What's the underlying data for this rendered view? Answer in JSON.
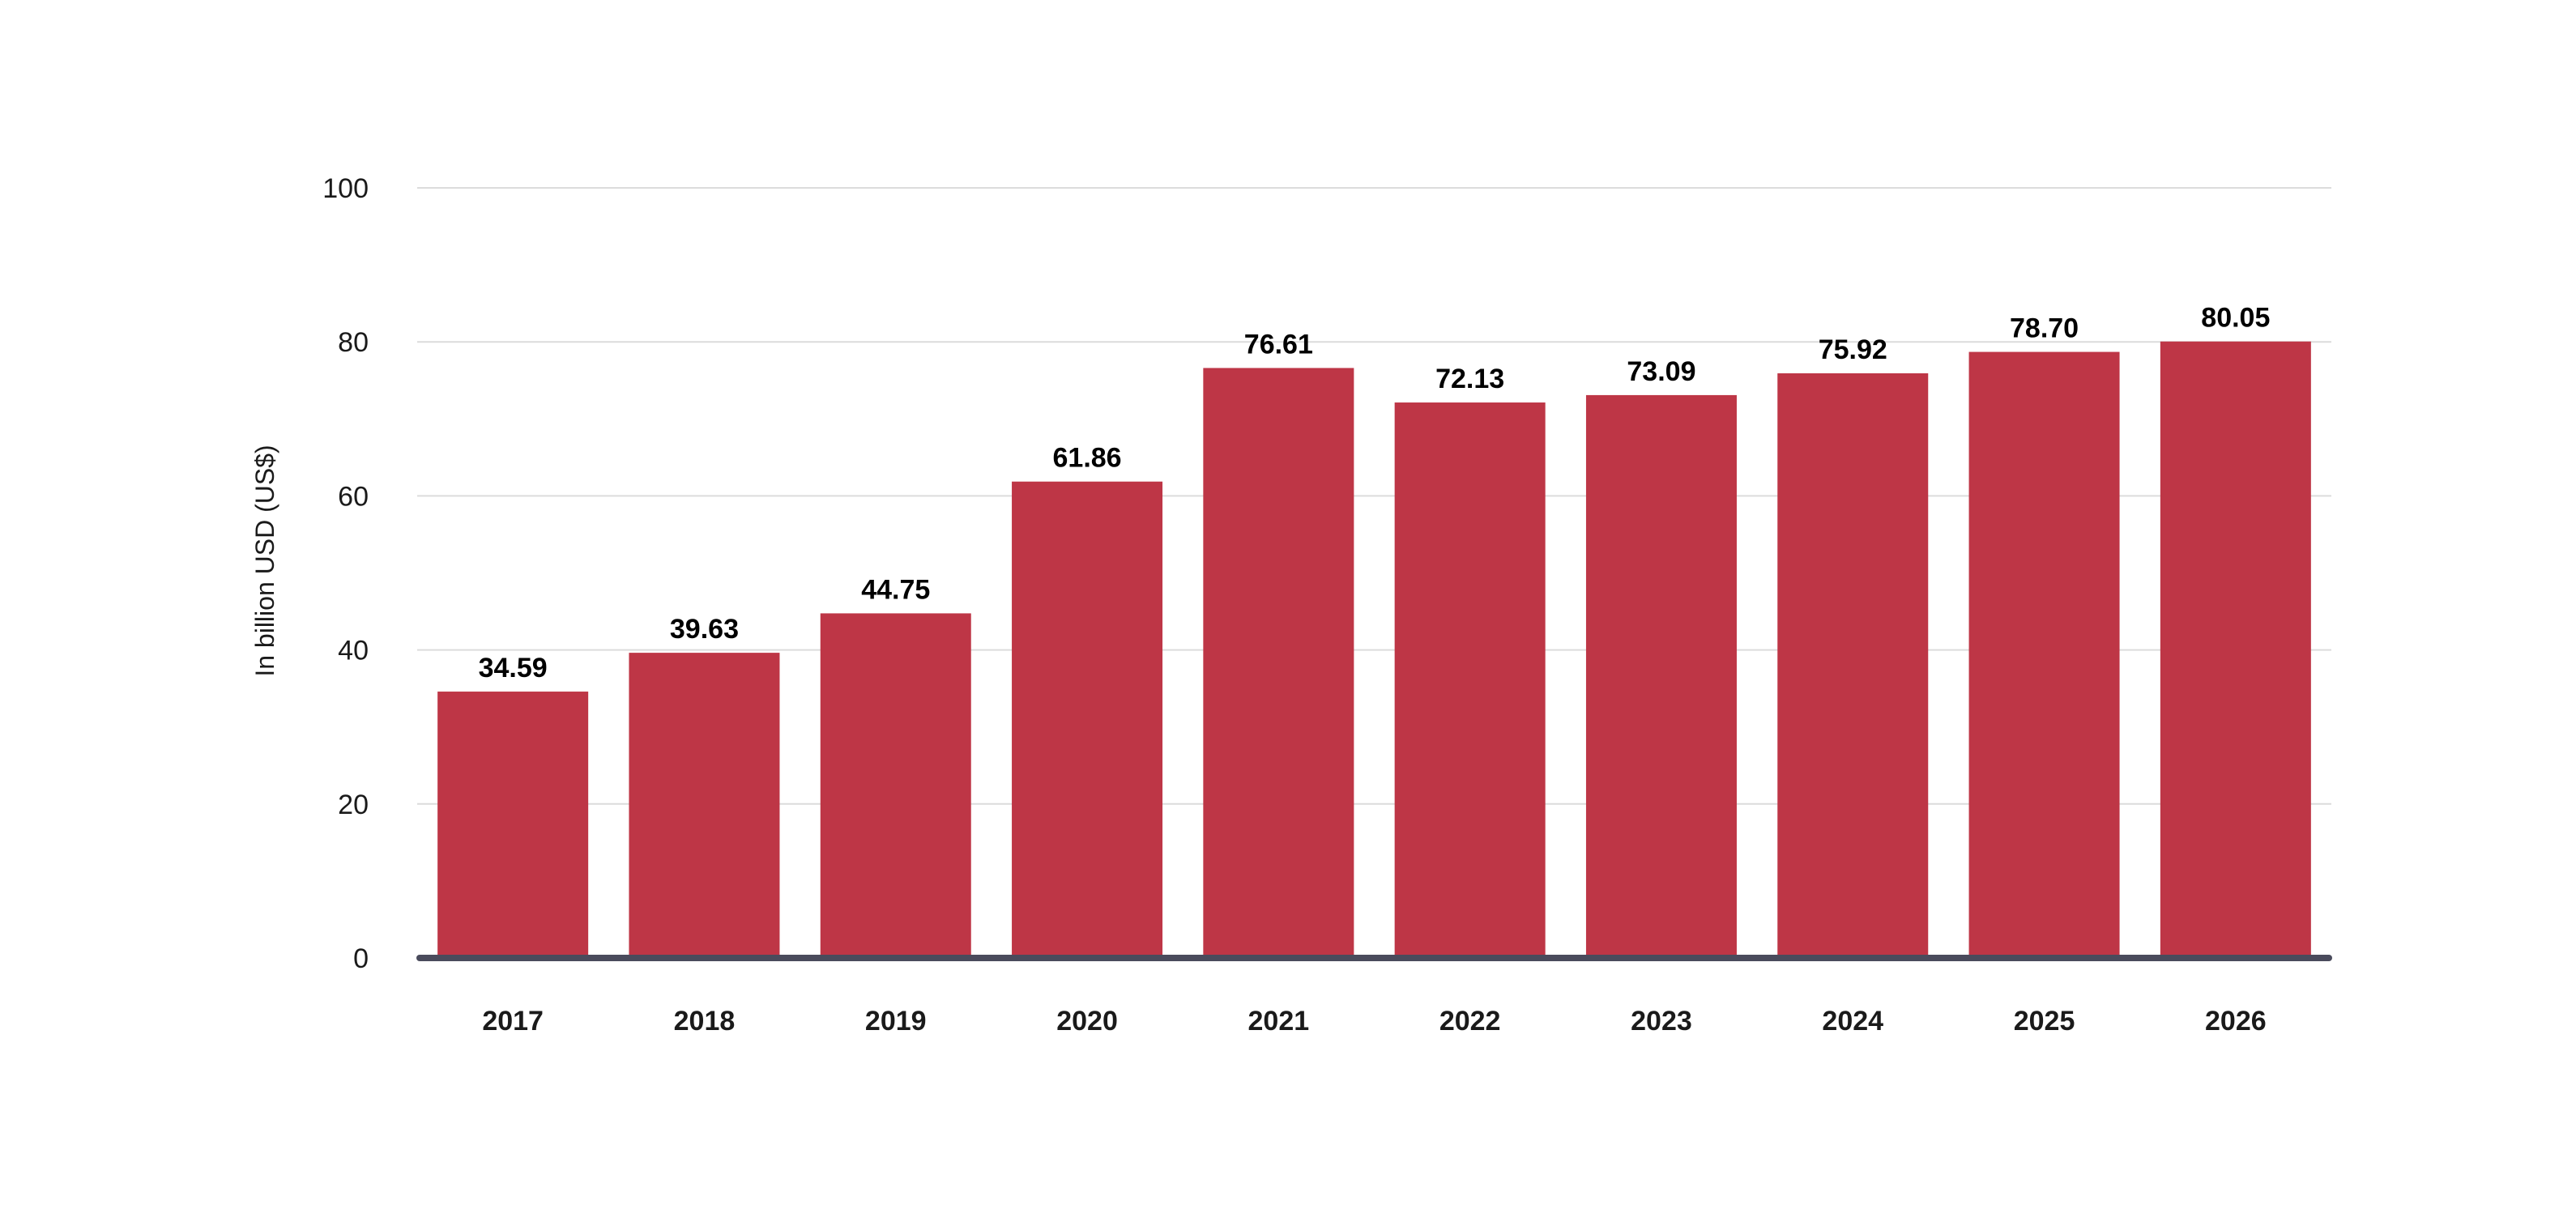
{
  "chart_data": {
    "type": "bar",
    "title": "",
    "xlabel": "",
    "ylabel": "In billion USD (US$)",
    "categories": [
      "2017",
      "2018",
      "2019",
      "2020",
      "2021",
      "2022",
      "2023",
      "2024",
      "2025",
      "2026"
    ],
    "values": [
      34.59,
      39.63,
      44.75,
      61.86,
      76.61,
      72.13,
      73.09,
      75.92,
      78.7,
      80.05
    ],
    "value_labels": [
      "34.59",
      "39.63",
      "44.75",
      "61.86",
      "76.61",
      "72.13",
      "73.09",
      "75.92",
      "78.70",
      "80.05"
    ],
    "ylim": [
      0,
      100
    ],
    "yticks": [
      "0",
      "20",
      "40",
      "60",
      "80",
      "100"
    ],
    "grid": true,
    "legend": "none",
    "colors": {
      "bar": "#be3646",
      "grid": "#dcdcdc",
      "baseline": "#4a4b5c"
    }
  }
}
